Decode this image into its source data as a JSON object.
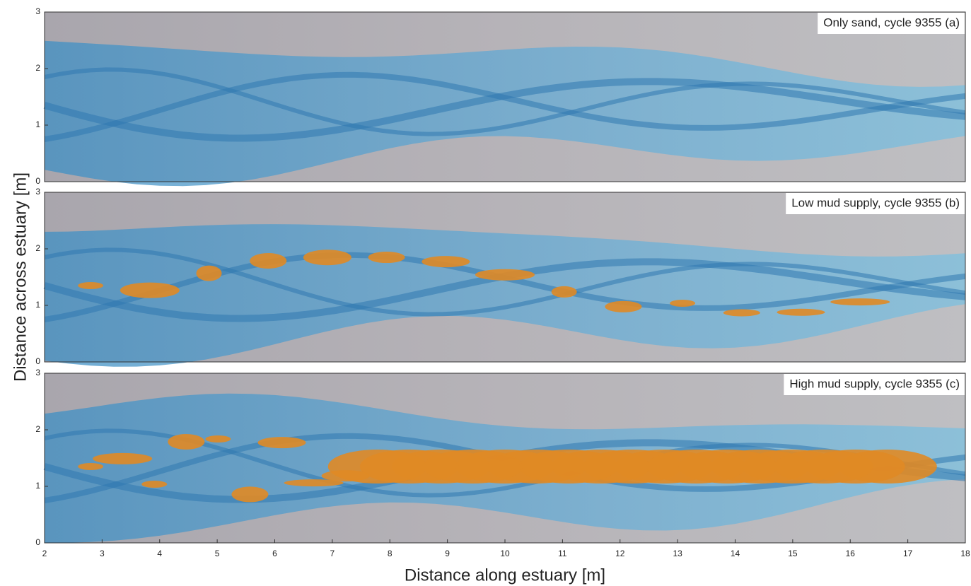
{
  "chart_data": [
    {
      "type": "image",
      "title": "Only sand, cycle 9355 (a)",
      "xlim": [
        2,
        18
      ],
      "ylim": [
        0,
        3
      ],
      "yticks": [
        0,
        1,
        2,
        3
      ]
    },
    {
      "type": "image",
      "title": "Low mud supply, cycle 9355 (b)",
      "xlim": [
        2,
        18
      ],
      "ylim": [
        0,
        3
      ],
      "yticks": [
        0,
        1,
        2,
        3
      ],
      "ylabel": "Distance across estuary [m]"
    },
    {
      "type": "image",
      "title": "High mud supply, cycle 9355 (c)",
      "xlim": [
        2,
        18
      ],
      "ylim": [
        0,
        3
      ],
      "yticks": [
        0,
        1,
        2,
        3
      ],
      "xticks": [
        2,
        3,
        4,
        5,
        6,
        7,
        8,
        9,
        10,
        11,
        12,
        13,
        14,
        15,
        16,
        17,
        18
      ],
      "xlabel": "Distance along estuary [m]"
    }
  ]
}
